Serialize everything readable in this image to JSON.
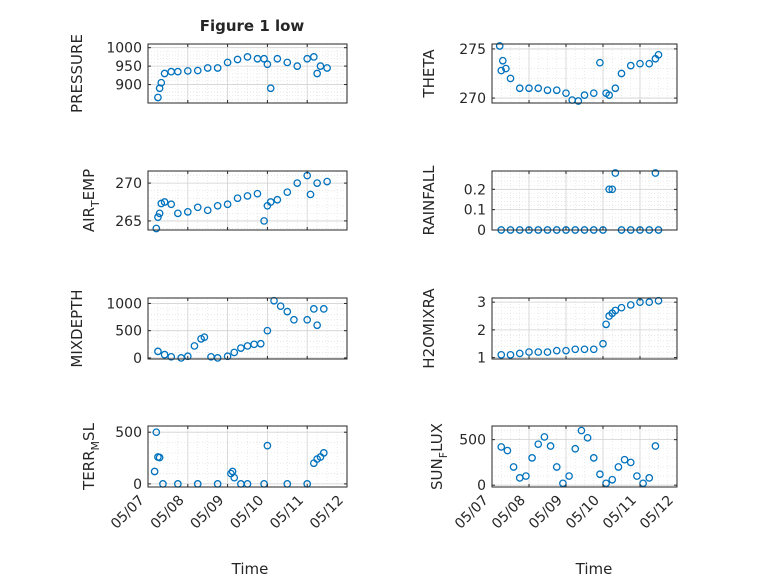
{
  "figure": {
    "title": "Figure 1 low",
    "time_label": "Time"
  },
  "style": {
    "marker_color": "#0072BD",
    "grid_color": "#dcdcdc",
    "axis_color": "#262626"
  },
  "chart_data": [
    {
      "type": "scatter",
      "id": "pressure",
      "title": "Figure 1 low",
      "ylabel": "PRESSURE",
      "ylabel_sub": "",
      "ylabel_tail": "",
      "xlim": [
        "05/07",
        "05/12"
      ],
      "xticks": [
        "05/07",
        "05/08",
        "05/09",
        "05/10",
        "05/11",
        "05/12"
      ],
      "show_xticklabels": false,
      "ylim": [
        850,
        1010
      ],
      "yticks": [
        900,
        950,
        1000
      ],
      "grid": true,
      "x": [
        "05/07 06:00",
        "05/07 07:00",
        "05/07 08:00",
        "05/07 10:00",
        "05/07 14:00",
        "05/07 18:00",
        "05/08 00:00",
        "05/08 06:00",
        "05/08 12:00",
        "05/08 18:00",
        "05/09 00:00",
        "05/09 06:00",
        "05/09 12:00",
        "05/09 18:00",
        "05/09 22:00",
        "05/10 00:00",
        "05/10 02:00",
        "05/10 06:00",
        "05/10 12:00",
        "05/10 18:00",
        "05/11 00:00",
        "05/11 04:00",
        "05/11 06:00",
        "05/11 08:00",
        "05/11 12:00"
      ],
      "y": [
        865,
        890,
        905,
        930,
        935,
        935,
        937,
        938,
        945,
        945,
        960,
        968,
        975,
        970,
        970,
        955,
        890,
        970,
        960,
        950,
        970,
        975,
        930,
        950,
        945
      ]
    },
    {
      "type": "scatter",
      "id": "theta",
      "ylabel": "THETA",
      "ylabel_sub": "",
      "ylabel_tail": "",
      "xlim": [
        "05/07",
        "05/12"
      ],
      "xticks": [
        "05/07",
        "05/08",
        "05/09",
        "05/10",
        "05/11",
        "05/12"
      ],
      "show_xticklabels": false,
      "ylim": [
        269.5,
        275.5
      ],
      "yticks": [
        270,
        275
      ],
      "grid": true,
      "x": [
        "05/07 05:00",
        "05/07 06:00",
        "05/07 07:00",
        "05/07 09:00",
        "05/07 12:00",
        "05/07 18:00",
        "05/08 00:00",
        "05/08 06:00",
        "05/08 12:00",
        "05/08 18:00",
        "05/09 00:00",
        "05/09 04:00",
        "05/09 08:00",
        "05/09 12:00",
        "05/09 18:00",
        "05/09 22:00",
        "05/10 02:00",
        "05/10 04:00",
        "05/10 08:00",
        "05/10 12:00",
        "05/10 18:00",
        "05/11 00:00",
        "05/11 06:00",
        "05/11 10:00",
        "05/11 12:00"
      ],
      "y": [
        275.3,
        272.8,
        273.8,
        273.0,
        272.0,
        271.0,
        271.0,
        271.0,
        270.8,
        270.8,
        270.5,
        269.8,
        269.7,
        270.3,
        270.5,
        273.6,
        270.5,
        270.3,
        271.0,
        272.5,
        273.3,
        273.5,
        273.5,
        274.0,
        274.4
      ]
    },
    {
      "type": "scatter",
      "id": "air_temp",
      "ylabel": "AIR",
      "ylabel_sub": "T",
      "ylabel_tail": "EMP",
      "xlim": [
        "05/07",
        "05/12"
      ],
      "xticks": [
        "05/07",
        "05/08",
        "05/09",
        "05/10",
        "05/11",
        "05/12"
      ],
      "show_xticklabels": false,
      "ylim": [
        263.8,
        271.6
      ],
      "yticks": [
        265,
        270
      ],
      "grid": true,
      "x": [
        "05/07 05:00",
        "05/07 06:00",
        "05/07 07:00",
        "05/07 08:00",
        "05/07 10:00",
        "05/07 14:00",
        "05/07 18:00",
        "05/08 00:00",
        "05/08 06:00",
        "05/08 12:00",
        "05/08 18:00",
        "05/09 00:00",
        "05/09 06:00",
        "05/09 12:00",
        "05/09 18:00",
        "05/09 22:00",
        "05/10 00:00",
        "05/10 02:00",
        "05/10 06:00",
        "05/10 12:00",
        "05/10 18:00",
        "05/11 00:00",
        "05/11 02:00",
        "05/11 06:00",
        "05/11 12:00"
      ],
      "y": [
        264.0,
        265.5,
        266.0,
        267.3,
        267.5,
        267.2,
        266.0,
        266.2,
        266.8,
        266.4,
        267.0,
        267.2,
        268.0,
        268.3,
        268.6,
        265.0,
        267.0,
        267.5,
        267.8,
        268.8,
        270.0,
        271.0,
        268.5,
        270.0,
        270.2
      ]
    },
    {
      "type": "scatter",
      "id": "rainfall",
      "ylabel": "RAINFALL",
      "ylabel_sub": "",
      "ylabel_tail": "",
      "xlim": [
        "05/07",
        "05/12"
      ],
      "xticks": [
        "05/07",
        "05/08",
        "05/09",
        "05/10",
        "05/11",
        "05/12"
      ],
      "show_xticklabels": false,
      "ylim": [
        0,
        0.29
      ],
      "yticks": [
        0,
        0.1,
        0.2
      ],
      "grid": true,
      "x": [
        "05/07 06:00",
        "05/07 12:00",
        "05/07 18:00",
        "05/08 00:00",
        "05/08 06:00",
        "05/08 12:00",
        "05/08 18:00",
        "05/09 00:00",
        "05/09 06:00",
        "05/09 12:00",
        "05/09 18:00",
        "05/10 00:00",
        "05/10 04:00",
        "05/10 06:00",
        "05/10 08:00",
        "05/10 12:00",
        "05/10 18:00",
        "05/11 00:00",
        "05/11 06:00",
        "05/11 10:00",
        "05/11 12:00"
      ],
      "y": [
        0,
        0,
        0,
        0,
        0,
        0,
        0,
        0,
        0,
        0,
        0,
        0,
        0.2,
        0.2,
        0.28,
        0,
        0,
        0,
        0,
        0.28,
        0
      ]
    },
    {
      "type": "scatter",
      "id": "mixdepth",
      "ylabel": "MIXDEPTH",
      "ylabel_sub": "",
      "ylabel_tail": "",
      "xlim": [
        "05/07",
        "05/12"
      ],
      "xticks": [
        "05/07",
        "05/08",
        "05/09",
        "05/10",
        "05/11",
        "05/12"
      ],
      "show_xticklabels": false,
      "ylim": [
        -20,
        1100
      ],
      "yticks": [
        0,
        500,
        1000
      ],
      "grid": true,
      "x": [
        "05/07 06:00",
        "05/07 10:00",
        "05/07 14:00",
        "05/07 20:00",
        "05/08 00:00",
        "05/08 04:00",
        "05/08 08:00",
        "05/08 10:00",
        "05/08 14:00",
        "05/08 18:00",
        "05/09 00:00",
        "05/09 04:00",
        "05/09 08:00",
        "05/09 12:00",
        "05/09 16:00",
        "05/09 20:00",
        "05/10 00:00",
        "05/10 04:00",
        "05/10 08:00",
        "05/10 12:00",
        "05/10 16:00",
        "05/11 00:00",
        "05/11 04:00",
        "05/11 06:00",
        "05/11 10:00"
      ],
      "y": [
        120,
        60,
        20,
        0,
        30,
        220,
        350,
        380,
        20,
        0,
        30,
        100,
        180,
        220,
        250,
        260,
        500,
        1050,
        950,
        850,
        700,
        700,
        900,
        600,
        900
      ]
    },
    {
      "type": "scatter",
      "id": "h2omixra",
      "ylabel": "H2OMIXRA",
      "ylabel_sub": "",
      "ylabel_tail": "",
      "xlim": [
        "05/07",
        "05/12"
      ],
      "xticks": [
        "05/07",
        "05/08",
        "05/09",
        "05/10",
        "05/11",
        "05/12"
      ],
      "show_xticklabels": false,
      "ylim": [
        0.95,
        3.15
      ],
      "yticks": [
        1,
        2,
        3
      ],
      "grid": true,
      "x": [
        "05/07 06:00",
        "05/07 12:00",
        "05/07 18:00",
        "05/08 00:00",
        "05/08 06:00",
        "05/08 12:00",
        "05/08 18:00",
        "05/09 00:00",
        "05/09 06:00",
        "05/09 12:00",
        "05/09 18:00",
        "05/10 00:00",
        "05/10 02:00",
        "05/10 04:00",
        "05/10 06:00",
        "05/10 08:00",
        "05/10 12:00",
        "05/10 18:00",
        "05/11 00:00",
        "05/11 06:00",
        "05/11 12:00"
      ],
      "y": [
        1.1,
        1.1,
        1.15,
        1.2,
        1.2,
        1.2,
        1.25,
        1.25,
        1.3,
        1.3,
        1.3,
        1.5,
        2.2,
        2.5,
        2.6,
        2.7,
        2.8,
        2.9,
        3.0,
        3.0,
        3.05
      ]
    },
    {
      "type": "scatter",
      "id": "terr_msl",
      "ylabel": "TERR",
      "ylabel_sub": "M",
      "ylabel_tail": "SL",
      "xlim": [
        "05/07",
        "05/12"
      ],
      "xticks": [
        "05/07",
        "05/08",
        "05/09",
        "05/10",
        "05/11",
        "05/12"
      ],
      "show_xticklabels": true,
      "ylim": [
        -30,
        560
      ],
      "yticks": [
        0,
        500
      ],
      "grid": true,
      "x": [
        "05/07 04:00",
        "05/07 05:00",
        "05/07 06:00",
        "05/07 07:00",
        "05/07 09:00",
        "05/07 18:00",
        "05/08 06:00",
        "05/08 18:00",
        "05/09 02:00",
        "05/09 03:00",
        "05/09 04:00",
        "05/09 08:00",
        "05/09 12:00",
        "05/09 22:00",
        "05/10 00:00",
        "05/10 12:00",
        "05/11 00:00",
        "05/11 04:00",
        "05/11 06:00",
        "05/11 08:00",
        "05/11 10:00"
      ],
      "y": [
        120,
        500,
        260,
        255,
        0,
        0,
        0,
        0,
        100,
        120,
        60,
        0,
        0,
        0,
        370,
        0,
        0,
        200,
        240,
        260,
        300
      ]
    },
    {
      "type": "scatter",
      "id": "sun_flux",
      "ylabel": "SUN",
      "ylabel_sub": "F",
      "ylabel_tail": "LUX",
      "xlim": [
        "05/07",
        "05/12"
      ],
      "xticks": [
        "05/07",
        "05/08",
        "05/09",
        "05/10",
        "05/11",
        "05/12"
      ],
      "show_xticklabels": true,
      "ylim": [
        -20,
        650
      ],
      "yticks": [
        0,
        500
      ],
      "grid": true,
      "x": [
        "05/07 06:00",
        "05/07 10:00",
        "05/07 14:00",
        "05/07 18:00",
        "05/07 22:00",
        "05/08 02:00",
        "05/08 06:00",
        "05/08 10:00",
        "05/08 14:00",
        "05/08 18:00",
        "05/08 22:00",
        "05/09 02:00",
        "05/09 06:00",
        "05/09 10:00",
        "05/09 14:00",
        "05/09 18:00",
        "05/09 22:00",
        "05/10 02:00",
        "05/10 06:00",
        "05/10 10:00",
        "05/10 14:00",
        "05/10 18:00",
        "05/10 22:00",
        "05/11 02:00",
        "05/11 06:00",
        "05/11 10:00"
      ],
      "y": [
        420,
        380,
        200,
        80,
        100,
        300,
        450,
        530,
        430,
        200,
        20,
        100,
        400,
        600,
        520,
        300,
        120,
        20,
        60,
        200,
        280,
        250,
        100,
        20,
        80,
        430
      ]
    }
  ]
}
